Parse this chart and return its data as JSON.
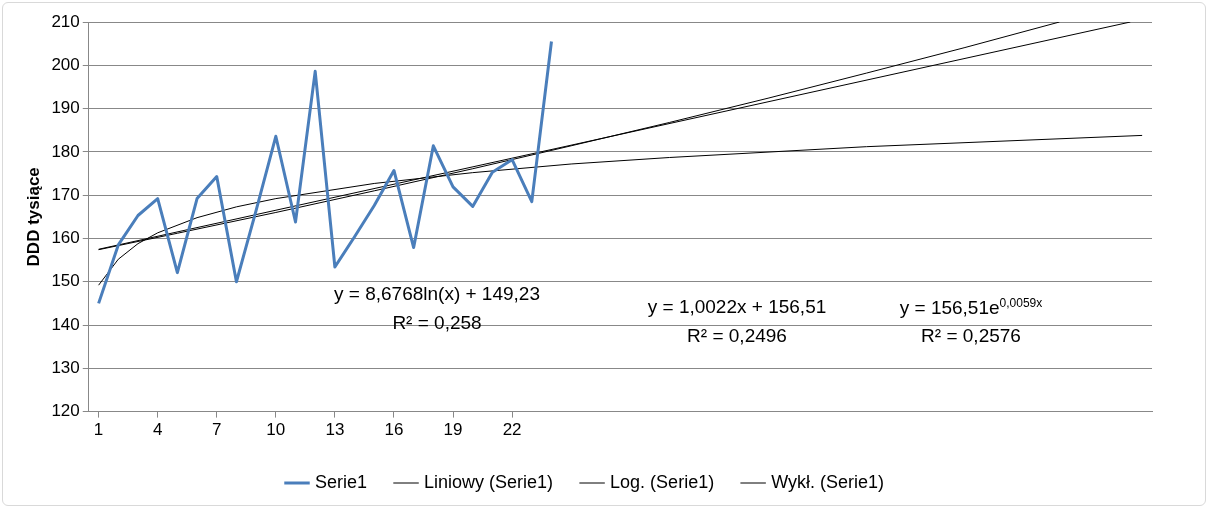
{
  "chart_data": {
    "type": "line",
    "ylabel": "DDD tysiące",
    "xlim": [
      0.5,
      54.5
    ],
    "xticks": [
      1,
      4,
      7,
      10,
      13,
      16,
      19,
      22
    ],
    "ylim": [
      120,
      210
    ],
    "yticks": [
      120,
      130,
      140,
      150,
      160,
      170,
      180,
      190,
      200,
      210
    ],
    "grid": "y",
    "legend": "bottom",
    "marker": "none",
    "series": [
      {
        "name": "Serie1",
        "color": "#4a7ebb",
        "x": [
          1,
          2,
          3,
          4,
          5,
          6,
          7,
          8,
          9,
          10,
          11,
          12,
          13,
          14,
          15,
          16,
          17,
          18,
          19,
          20,
          21,
          22,
          23,
          24
        ],
        "values": [
          145.0,
          158.5,
          165.3,
          169.2,
          152.1,
          169.2,
          174.3,
          150.0,
          166.5,
          183.6,
          163.8,
          198.6,
          153.4,
          160.4,
          167.6,
          175.7,
          157.9,
          181.4,
          171.9,
          167.4,
          175.3,
          178.2,
          168.5,
          205.5
        ]
      },
      {
        "name": "Liniowy (Serie1)",
        "color": "#000000",
        "x": [
          1,
          53.4
        ],
        "values": [
          157.5,
          210
        ]
      },
      {
        "name": "Log. (Serie1)",
        "color": "#000000",
        "x": [
          1,
          2,
          3,
          4,
          6,
          8,
          10,
          15,
          20,
          25,
          30,
          40,
          54
        ],
        "values": [
          149.2,
          155.2,
          158.8,
          161.3,
          164.8,
          167.3,
          169.2,
          172.7,
          175.2,
          177.2,
          178.7,
          181.2,
          183.8
        ]
      },
      {
        "name": "Wykł. (Serie1)",
        "color": "#000000",
        "x": [
          1,
          5,
          10,
          15,
          20,
          25,
          30,
          35,
          40,
          45,
          49.8
        ],
        "values": [
          157.4,
          161.2,
          166.0,
          171.0,
          176.1,
          181.4,
          186.8,
          192.4,
          198.2,
          204.1,
          210
        ]
      }
    ],
    "annotations": [
      "y = 8,6768ln(x) + 149,23",
      "R² = 0,258",
      "y = 1,0022x + 156,51",
      "R² = 0,2496",
      "y = 156,51e$^{0,0059x}$",
      "R² = 0,2576"
    ]
  }
}
